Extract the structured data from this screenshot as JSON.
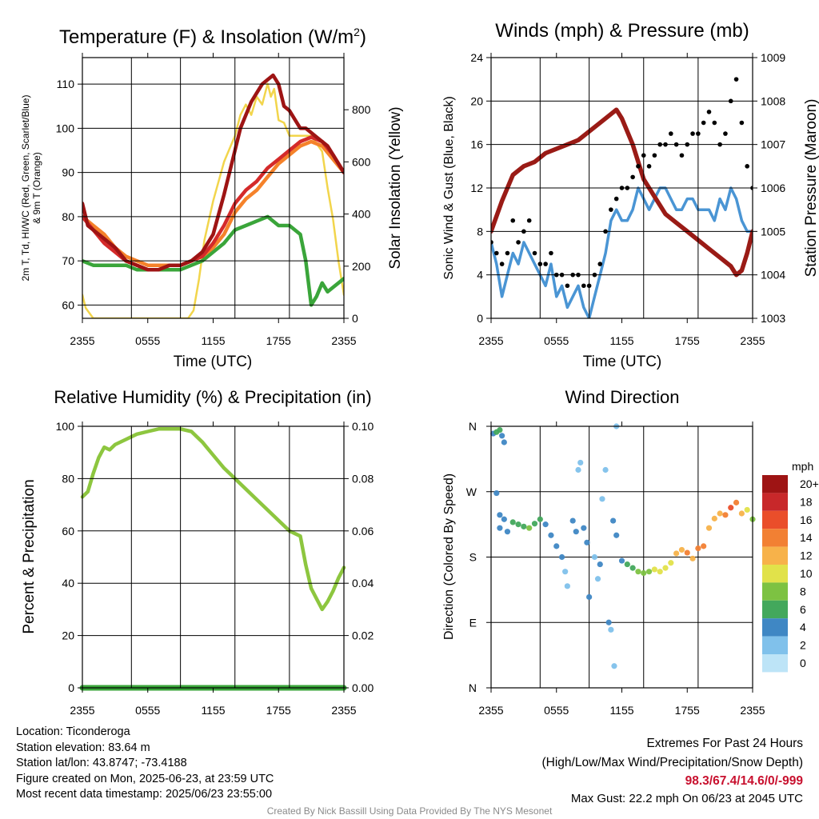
{
  "colors": {
    "temp": "#d42a2a",
    "dewpoint": "#3aa53a",
    "heat_index": "#9e1414",
    "temp_9m": "#f5822a",
    "insolation": "#f2d54c",
    "wind": "#4a95d4",
    "gust": "#000000",
    "pressure": "#9a1b16",
    "humidity": "#8dc63f",
    "precip": "#3aa53a",
    "extremes_values": "#c8102e",
    "credit": "#8a8a8a"
  },
  "info": {
    "location": "Location: Ticonderoga",
    "elevation": "Station elevation: 83.64 m",
    "latlon": "Station lat/lon: 43.8747; -73.4188",
    "created": "Figure created on Mon, 2025-06-23, at 23:59 UTC",
    "recent": "Most recent data timestamp: 2025/06/23 23:55:00"
  },
  "extremes": {
    "title": "Extremes For Past 24 Hours",
    "subtitle": "(High/Low/Max Wind/Precipitation/Snow Depth)",
    "values": "98.3/67.4/14.6/0/-999",
    "gust": "Max Gust: 22.2 mph On 06/23 at 2045 UTC"
  },
  "credit": "Created By Nick Bassill Using Data Provided By The NYS Mesonet",
  "chart_data": [
    {
      "type": "line",
      "title": "Temperature (F) & Insolation (W/m²)",
      "xlabel": "Time (UTC)",
      "ylabel_lines": [
        "2m T, Td, HI/WC (Red, Green, Scarlet/Blue)",
        "& 9m T (Orange)"
      ],
      "y2label": "Solar Insolation (Yellow)",
      "x_ticks": [
        "2355",
        "0555",
        "1155",
        "1755",
        "2355"
      ],
      "x_range_hours": [
        0,
        24
      ],
      "ylim": [
        57,
        116
      ],
      "yticks": [
        60,
        70,
        80,
        90,
        100,
        110
      ],
      "y2lim": [
        0,
        1000
      ],
      "y2ticks": [
        0,
        200,
        400,
        600,
        800
      ],
      "grid": true,
      "series": [
        {
          "color_key": "heat_index",
          "axis": "left",
          "x": [
            0,
            0.5,
            1,
            2,
            3,
            4,
            5,
            6,
            7,
            8,
            9,
            10,
            11,
            12,
            13,
            14,
            14.5,
            15,
            15.5,
            16,
            16.5,
            17,
            17.5,
            18,
            18.5,
            19,
            19.5,
            20,
            20.5,
            21,
            21.5,
            22,
            22.5,
            23,
            23.5,
            24
          ],
          "y": [
            83,
            78,
            77,
            75,
            73,
            70,
            69,
            68,
            68,
            69,
            69,
            70,
            72,
            76,
            85,
            95,
            100,
            103,
            106,
            108,
            110,
            111,
            112,
            110,
            105,
            104,
            102,
            100,
            100,
            99,
            98,
            97,
            96,
            94,
            92,
            90
          ]
        },
        {
          "color_key": "temp",
          "axis": "left",
          "x": [
            0,
            1,
            2,
            3,
            4,
            5,
            6,
            7,
            8,
            9,
            10,
            11,
            12,
            13,
            14,
            15,
            16,
            17,
            18,
            19,
            20,
            21,
            22,
            23,
            24
          ],
          "y": [
            80,
            77,
            74,
            72,
            70,
            69,
            68,
            68,
            69,
            69,
            70,
            71,
            74,
            78,
            83,
            86,
            88,
            91,
            93,
            95,
            97,
            98,
            97,
            94,
            90
          ]
        },
        {
          "color_key": "temp_9m",
          "axis": "left",
          "x": [
            0,
            1,
            2,
            3,
            4,
            5,
            6,
            7,
            8,
            9,
            10,
            11,
            12,
            13,
            14,
            15,
            16,
            17,
            18,
            19,
            20,
            21,
            22,
            23,
            24
          ],
          "y": [
            80,
            78,
            76,
            73,
            71,
            70,
            69,
            69,
            69,
            69,
            70,
            71,
            73,
            76,
            81,
            84,
            86,
            89,
            92,
            94,
            96,
            97,
            96,
            93,
            90
          ]
        },
        {
          "color_key": "dewpoint",
          "axis": "left",
          "x": [
            0,
            1,
            2,
            3,
            4,
            5,
            6,
            7,
            8,
            9,
            10,
            11,
            12,
            13,
            14,
            15,
            16,
            17,
            18,
            19,
            20,
            20.5,
            21,
            21.5,
            22,
            22.5,
            23,
            24
          ],
          "y": [
            70,
            69,
            69,
            69,
            69,
            68,
            68,
            68,
            68,
            68,
            69,
            70,
            72,
            74,
            77,
            78,
            79,
            80,
            78,
            78,
            76,
            70,
            60,
            62,
            65,
            63,
            64,
            66
          ]
        },
        {
          "color_key": "insolation",
          "axis": "right",
          "x": [
            0,
            0.3,
            1,
            3,
            5,
            8,
            9,
            9.7,
            10.2,
            10.7,
            11.2,
            12,
            13,
            14,
            14.5,
            15,
            15.5,
            16,
            16.5,
            17,
            17.3,
            17.6,
            18,
            18.5,
            19,
            20,
            21,
            22,
            22.5,
            23,
            23.5,
            24
          ],
          "y": [
            90,
            40,
            0,
            0,
            0,
            0,
            0,
            0,
            30,
            150,
            300,
            450,
            600,
            700,
            780,
            820,
            780,
            850,
            820,
            900,
            850,
            880,
            760,
            750,
            700,
            700,
            700,
            640,
            500,
            380,
            220,
            90
          ]
        }
      ]
    },
    {
      "type": "line",
      "title": "Winds (mph) & Pressure (mb)",
      "xlabel": "Time (UTC)",
      "ylabel": "Sonic Wind & Gust (Blue, Black)",
      "y2label": "Station Pressure (Maroon)",
      "x_ticks": [
        "2355",
        "0555",
        "1155",
        "1755",
        "2355"
      ],
      "x_range_hours": [
        0,
        24
      ],
      "ylim": [
        0,
        24
      ],
      "yticks": [
        0,
        4,
        8,
        12,
        16,
        20,
        24
      ],
      "y2lim": [
        1003,
        1009
      ],
      "y2ticks": [
        1003,
        1004,
        1005,
        1006,
        1007,
        1008,
        1009
      ],
      "grid": true,
      "series": [
        {
          "color_key": "wind",
          "axis": "left",
          "x": [
            0,
            0.5,
            1,
            1.5,
            2,
            2.5,
            3,
            3.5,
            4,
            4.5,
            5,
            5.5,
            6,
            6.5,
            7,
            7.5,
            8,
            8.5,
            9,
            9.5,
            10,
            10.5,
            11,
            11.5,
            12,
            12.5,
            13,
            13.5,
            14,
            14.5,
            15,
            15.5,
            16,
            16.5,
            17,
            17.5,
            18,
            18.5,
            19,
            19.5,
            20,
            20.5,
            21,
            21.5,
            22,
            22.5,
            23,
            23.5,
            24
          ],
          "y": [
            7,
            5,
            2,
            4,
            6,
            5,
            7,
            6,
            5,
            4,
            3,
            5,
            2,
            3,
            1,
            2,
            3,
            1,
            0,
            2,
            4,
            6,
            9,
            10,
            9,
            9,
            10,
            12,
            11,
            10,
            11,
            12,
            12,
            11,
            10,
            10,
            11,
            11,
            10,
            10,
            10,
            9,
            11,
            10,
            12,
            11,
            9,
            8,
            8
          ]
        },
        {
          "color_key": "pressure",
          "axis": "right",
          "x": [
            0,
            1,
            2,
            3,
            4,
            5,
            6,
            7,
            8,
            9,
            10,
            11,
            11.5,
            12,
            13,
            14,
            15,
            16,
            17,
            18,
            19,
            20,
            21,
            22,
            22.5,
            23,
            23.5,
            24
          ],
          "y": [
            1005,
            1005.7,
            1006.3,
            1006.5,
            1006.6,
            1006.8,
            1006.9,
            1007,
            1007.1,
            1007.3,
            1007.5,
            1007.7,
            1007.8,
            1007.6,
            1007.0,
            1006.2,
            1005.8,
            1005.4,
            1005.2,
            1005.0,
            1004.8,
            1004.6,
            1004.4,
            1004.2,
            1004.0,
            1004.1,
            1004.5,
            1005.0
          ]
        },
        {
          "color_key": "gust",
          "axis": "left",
          "mode": "points",
          "x": [
            0,
            0.5,
            1,
            1.5,
            2,
            2.5,
            3,
            3.5,
            4,
            4.5,
            5,
            5.5,
            6,
            6.5,
            7,
            7.5,
            8,
            8.5,
            9,
            9.5,
            10,
            10.5,
            11,
            11.5,
            12,
            12.5,
            13,
            13.5,
            14,
            14.5,
            15,
            15.5,
            16,
            16.5,
            17,
            17.5,
            18,
            18.5,
            19,
            19.5,
            20,
            20.5,
            21,
            21.5,
            22,
            22.5,
            23,
            23.5,
            24
          ],
          "y": [
            7,
            6,
            5,
            6,
            9,
            7,
            8,
            9,
            6,
            5,
            5,
            6,
            4,
            4,
            3,
            4,
            4,
            3,
            3,
            4,
            5,
            8,
            10,
            11,
            12,
            12,
            13,
            14,
            15,
            14,
            15,
            16,
            16,
            17,
            16,
            15,
            16,
            17,
            17,
            18,
            19,
            18,
            16,
            17,
            20,
            22,
            18,
            14,
            12
          ]
        }
      ]
    },
    {
      "type": "line",
      "title": "Relative Humidity (%) & Precipitation (in)",
      "xlabel": "",
      "ylabel": "Percent & Precipitation",
      "x_ticks": [
        "2355",
        "0555",
        "1155",
        "1755",
        "2355"
      ],
      "x_range_hours": [
        0,
        24
      ],
      "ylim": [
        0,
        100
      ],
      "yticks": [
        0,
        20,
        40,
        60,
        80,
        100
      ],
      "y2lim": [
        0,
        0.1
      ],
      "y2ticks": [
        "0.00",
        "0.02",
        "0.04",
        "0.06",
        "0.08",
        "0.10"
      ],
      "grid": true,
      "series": [
        {
          "color_key": "humidity",
          "axis": "left",
          "x": [
            0,
            0.5,
            1,
            1.5,
            2,
            2.5,
            3,
            4,
            5,
            6,
            7,
            8,
            9,
            10,
            11,
            12,
            13,
            14,
            15,
            16,
            17,
            18,
            19,
            20,
            20.5,
            21,
            21.5,
            22,
            22.5,
            23,
            23.5,
            24
          ],
          "y": [
            73,
            75,
            82,
            88,
            92,
            91,
            93,
            95,
            97,
            98,
            99,
            99,
            99,
            98,
            94,
            89,
            84,
            80,
            76,
            72,
            68,
            64,
            60,
            58,
            47,
            38,
            34,
            30,
            33,
            37,
            42,
            46
          ]
        },
        {
          "color_key": "precip",
          "axis": "right",
          "x": [
            0,
            24
          ],
          "y": [
            0,
            0
          ]
        }
      ]
    },
    {
      "type": "scatter",
      "title": "Wind Direction",
      "ylabel": "Direction (Colored By Speed)",
      "x_ticks": [
        "2355",
        "0555",
        "1155",
        "1755",
        "2355"
      ],
      "x_range_hours": [
        0,
        24
      ],
      "y_ticks": [
        "N",
        "E",
        "S",
        "W",
        "N"
      ],
      "ylim_deg": [
        0,
        360
      ],
      "grid": true,
      "colorbar": {
        "unit": "mph",
        "labels": [
          "0",
          "2",
          "4",
          "6",
          "8",
          "10",
          "12",
          "14",
          "16",
          "18",
          "20+"
        ],
        "colors": [
          "#bde4f7",
          "#80c1eb",
          "#3f87c4",
          "#43a85c",
          "#7dc242",
          "#e1e24a",
          "#f7b24a",
          "#f28033",
          "#ea4e2a",
          "#c8282a",
          "#9e1414"
        ]
      },
      "points": [
        [
          0.2,
          350,
          3
        ],
        [
          0.5,
          352,
          5
        ],
        [
          0.8,
          355,
          6
        ],
        [
          1.0,
          347,
          3
        ],
        [
          1.2,
          338,
          3
        ],
        [
          0.5,
          268,
          3
        ],
        [
          0.8,
          238,
          3
        ],
        [
          1.2,
          232,
          3
        ],
        [
          0.8,
          220,
          3
        ],
        [
          1.5,
          215,
          4
        ],
        [
          2.0,
          228,
          5
        ],
        [
          2.5,
          225,
          6
        ],
        [
          3.0,
          222,
          6
        ],
        [
          3.5,
          220,
          7
        ],
        [
          4.0,
          226,
          6
        ],
        [
          4.5,
          232,
          5
        ],
        [
          5.0,
          225,
          4
        ],
        [
          5.5,
          210,
          4
        ],
        [
          6.0,
          195,
          3
        ],
        [
          6.5,
          180,
          3
        ],
        [
          6.8,
          160,
          2
        ],
        [
          7.0,
          140,
          2
        ],
        [
          7.5,
          230,
          3
        ],
        [
          7.8,
          215,
          3
        ],
        [
          8.0,
          300,
          2
        ],
        [
          8.2,
          310,
          2
        ],
        [
          8.5,
          220,
          3
        ],
        [
          8.8,
          200,
          3
        ],
        [
          9.0,
          125,
          3
        ],
        [
          9.5,
          180,
          2
        ],
        [
          9.8,
          150,
          2
        ],
        [
          10.0,
          170,
          3
        ],
        [
          10.2,
          260,
          2
        ],
        [
          10.5,
          300,
          2
        ],
        [
          10.8,
          90,
          3
        ],
        [
          11.0,
          80,
          2
        ],
        [
          11.3,
          30,
          1
        ],
        [
          11.5,
          360,
          1
        ],
        [
          11.2,
          230,
          3
        ],
        [
          11.5,
          210,
          3
        ],
        [
          12.0,
          175,
          4
        ],
        [
          12.5,
          170,
          5
        ],
        [
          13.0,
          165,
          6
        ],
        [
          13.5,
          160,
          8
        ],
        [
          14.0,
          158,
          7
        ],
        [
          14.5,
          160,
          8
        ],
        [
          15.0,
          163,
          9
        ],
        [
          15.5,
          160,
          10
        ],
        [
          16.0,
          165,
          10
        ],
        [
          16.5,
          172,
          10
        ],
        [
          17.0,
          185,
          12
        ],
        [
          17.5,
          190,
          12
        ],
        [
          18.0,
          186,
          13
        ],
        [
          18.5,
          178,
          12
        ],
        [
          19.0,
          192,
          14
        ],
        [
          19.5,
          195,
          14
        ],
        [
          20.0,
          220,
          12
        ],
        [
          20.5,
          233,
          11
        ],
        [
          21.0,
          240,
          12
        ],
        [
          21.5,
          238,
          14
        ],
        [
          22.0,
          248,
          16
        ],
        [
          22.5,
          255,
          13
        ],
        [
          23.0,
          240,
          12
        ],
        [
          23.5,
          245,
          10
        ],
        [
          24.0,
          232,
          8
        ]
      ]
    }
  ]
}
